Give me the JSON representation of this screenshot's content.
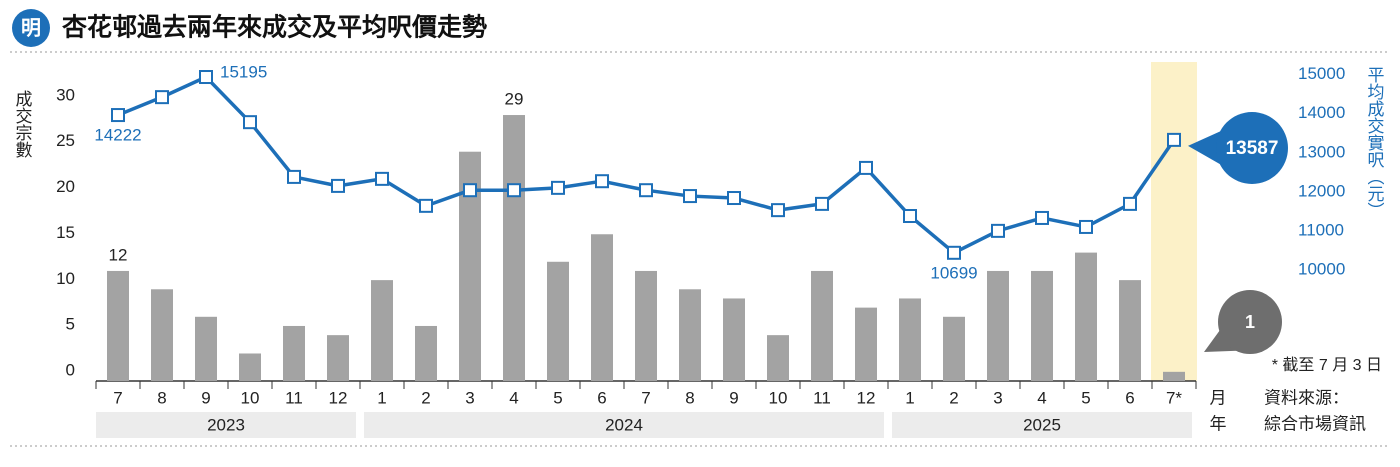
{
  "chart_data": {
    "type": "combo",
    "logo": "明",
    "title": "杏花邨過去兩年來成交及平均呎價走勢",
    "y_label": "成交宗數",
    "y2_label": "平均成交實呎（元）",
    "x_month_unit": "月",
    "x_year_unit": "年",
    "categories": [
      "7",
      "8",
      "9",
      "10",
      "11",
      "12",
      "1",
      "2",
      "3",
      "4",
      "5",
      "6",
      "7",
      "8",
      "9",
      "10",
      "11",
      "12",
      "1",
      "2",
      "3",
      "4",
      "5",
      "6",
      "7*"
    ],
    "years": [
      {
        "label": "2023",
        "count": 6
      },
      {
        "label": "2024",
        "count": 12
      },
      {
        "label": "2025",
        "count": 7
      }
    ],
    "series": [
      {
        "type": "bar",
        "color": "#a3a3a3",
        "values": [
          12,
          10,
          7,
          3,
          6,
          5,
          11,
          6,
          25,
          29,
          13,
          16,
          12,
          10,
          9,
          5,
          12,
          8,
          9,
          7,
          12,
          12,
          14,
          11,
          1
        ],
        "value_labels": [
          "12",
          null,
          null,
          null,
          null,
          null,
          null,
          null,
          null,
          "29",
          null,
          null,
          null,
          null,
          null,
          null,
          null,
          null,
          null,
          null,
          null,
          null,
          null,
          null,
          "1"
        ]
      },
      {
        "type": "line",
        "axis": "y2",
        "color": "#1d6fb8",
        "values": [
          14222,
          14680,
          15195,
          14040,
          12640,
          12410,
          12590,
          11900,
          12300,
          12300,
          12360,
          12530,
          12300,
          12150,
          12100,
          11790,
          11950,
          12870,
          11640,
          10699,
          11260,
          11590,
          11360,
          11950,
          13587
        ],
        "value_labels": [
          "14222",
          null,
          "15195",
          null,
          null,
          null,
          null,
          null,
          null,
          null,
          null,
          null,
          null,
          null,
          null,
          null,
          null,
          null,
          null,
          "10699",
          null,
          null,
          null,
          null,
          "13587"
        ]
      }
    ],
    "ylim": [
      0,
      35
    ],
    "yticks": [
      0,
      5,
      10,
      15,
      20,
      25,
      30
    ],
    "y2lim": [
      7420,
      15630
    ],
    "y2ticks": [
      10000,
      11000,
      12000,
      13000,
      14000,
      15000
    ],
    "highlight": {
      "index": 24,
      "color": "#fcf1c8"
    },
    "footnote": "* 截至 7 月 3 日",
    "source_label": "資料來源：",
    "source": "綜合市場資訊"
  }
}
